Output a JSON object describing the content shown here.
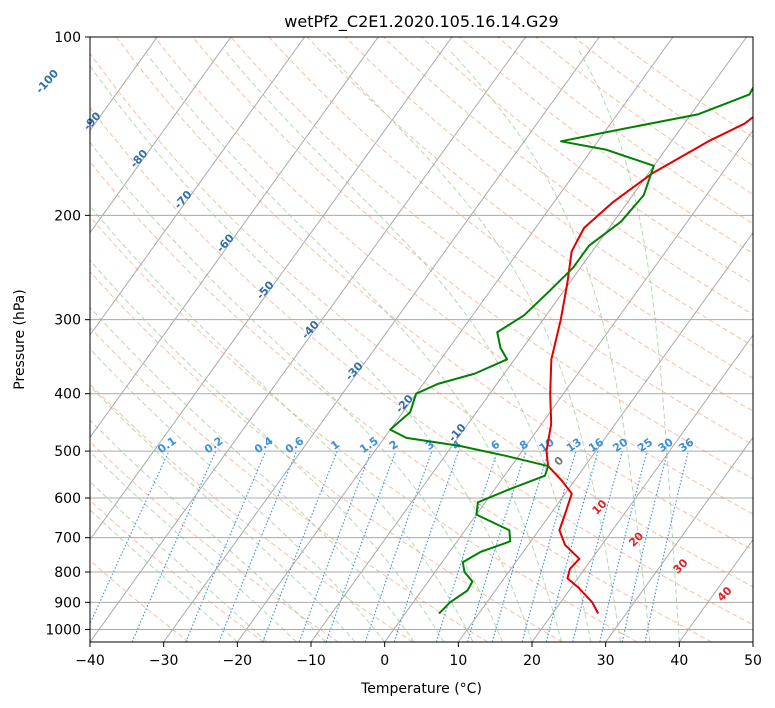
{
  "chart_data": {
    "type": "line",
    "title": "wetPf2_C2E1.2020.105.16.14.G29",
    "xlabel": "Temperature (°C)",
    "ylabel": "Pressure (hPa)",
    "xlim": [
      -40,
      50
    ],
    "ylim": [
      1050,
      100
    ],
    "y_scale": "log",
    "grid": true,
    "x_ticks": [
      -40,
      -30,
      -20,
      -10,
      0,
      10,
      20,
      30,
      40,
      50
    ],
    "y_ticks": [
      100,
      200,
      300,
      400,
      500,
      600,
      700,
      800,
      900,
      1000
    ],
    "colors": {
      "temperature": "#e00000",
      "dewpoint": "#008000",
      "isotherm": "#aaaaaa",
      "dry_adiabat": "#f4a582",
      "moist_adiabat": "#99cc99",
      "mixing_ratio": "#3a8fd9",
      "isotherm_label": "#2f6fb0",
      "moist_label": "#d62728"
    },
    "series": [
      {
        "name": "temperature",
        "points": [
          {
            "p": 940,
            "t": 26.2
          },
          {
            "p": 900,
            "t": 24.3
          },
          {
            "p": 850,
            "t": 21.0
          },
          {
            "p": 820,
            "t": 18.6
          },
          {
            "p": 790,
            "t": 18.0
          },
          {
            "p": 760,
            "t": 18.3
          },
          {
            "p": 720,
            "t": 15.0
          },
          {
            "p": 680,
            "t": 12.8
          },
          {
            "p": 630,
            "t": 11.8
          },
          {
            "p": 590,
            "t": 10.9
          },
          {
            "p": 560,
            "t": 8.2
          },
          {
            "p": 530,
            "t": 5.0
          },
          {
            "p": 500,
            "t": 3.3
          },
          {
            "p": 450,
            "t": 1.3
          },
          {
            "p": 400,
            "t": -1.8
          },
          {
            "p": 350,
            "t": -5.0
          },
          {
            "p": 300,
            "t": -7.6
          },
          {
            "p": 260,
            "t": -10.3
          },
          {
            "p": 230,
            "t": -12.8
          },
          {
            "p": 210,
            "t": -13.4
          },
          {
            "p": 190,
            "t": -12.0
          },
          {
            "p": 170,
            "t": -9.5
          },
          {
            "p": 150,
            "t": -5.0
          },
          {
            "p": 140,
            "t": -1.8
          },
          {
            "p": 130,
            "t": -0.3
          },
          {
            "p": 120,
            "t": -0.3
          },
          {
            "p": 110,
            "t": 0.8
          },
          {
            "p": 100,
            "t": 2.6
          }
        ]
      },
      {
        "name": "dewpoint",
        "points": [
          {
            "p": 940,
            "t": 4.6
          },
          {
            "p": 900,
            "t": 5.0
          },
          {
            "p": 860,
            "t": 6.2
          },
          {
            "p": 830,
            "t": 6.0
          },
          {
            "p": 800,
            "t": 4.0
          },
          {
            "p": 770,
            "t": 2.8
          },
          {
            "p": 740,
            "t": 4.2
          },
          {
            "p": 710,
            "t": 7.2
          },
          {
            "p": 680,
            "t": 6.0
          },
          {
            "p": 640,
            "t": 0.0
          },
          {
            "p": 610,
            "t": -1.0
          },
          {
            "p": 580,
            "t": 2.0
          },
          {
            "p": 550,
            "t": 5.5
          },
          {
            "p": 530,
            "t": 5.0
          },
          {
            "p": 510,
            "t": -1.5
          },
          {
            "p": 490,
            "t": -9.0
          },
          {
            "p": 475,
            "t": -17.0
          },
          {
            "p": 460,
            "t": -20.0
          },
          {
            "p": 430,
            "t": -19.0
          },
          {
            "p": 400,
            "t": -20.0
          },
          {
            "p": 385,
            "t": -18.0
          },
          {
            "p": 370,
            "t": -14.0
          },
          {
            "p": 350,
            "t": -11.0
          },
          {
            "p": 335,
            "t": -13.0
          },
          {
            "p": 315,
            "t": -15.0
          },
          {
            "p": 295,
            "t": -13.0
          },
          {
            "p": 270,
            "t": -12.0
          },
          {
            "p": 245,
            "t": -11.0
          },
          {
            "p": 225,
            "t": -11.0
          },
          {
            "p": 205,
            "t": -9.0
          },
          {
            "p": 185,
            "t": -8.5
          },
          {
            "p": 165,
            "t": -10.0
          },
          {
            "p": 155,
            "t": -18.0
          },
          {
            "p": 150,
            "t": -25.0
          },
          {
            "p": 145,
            "t": -20.0
          },
          {
            "p": 135,
            "t": -9.0
          },
          {
            "p": 125,
            "t": -4.0
          },
          {
            "p": 115,
            "t": -4.5
          },
          {
            "p": 108,
            "t": -2.0
          },
          {
            "p": 100,
            "t": -1.0
          }
        ]
      }
    ],
    "isotherm_labels": [
      "-100",
      "-90",
      "-80",
      "-70",
      "-60",
      "-50",
      "-40",
      "-30",
      "-20",
      "-10"
    ],
    "mixing_ratio_labels": [
      "0.1",
      "0.2",
      "0.4",
      "0.6",
      "1",
      "1.5",
      "2",
      "3",
      "4",
      "6",
      "8",
      "10",
      "13",
      "16",
      "20",
      "25",
      "30",
      "36"
    ],
    "moist_adiabat_labels": [
      "0",
      "10",
      "20",
      "30",
      "40"
    ]
  }
}
